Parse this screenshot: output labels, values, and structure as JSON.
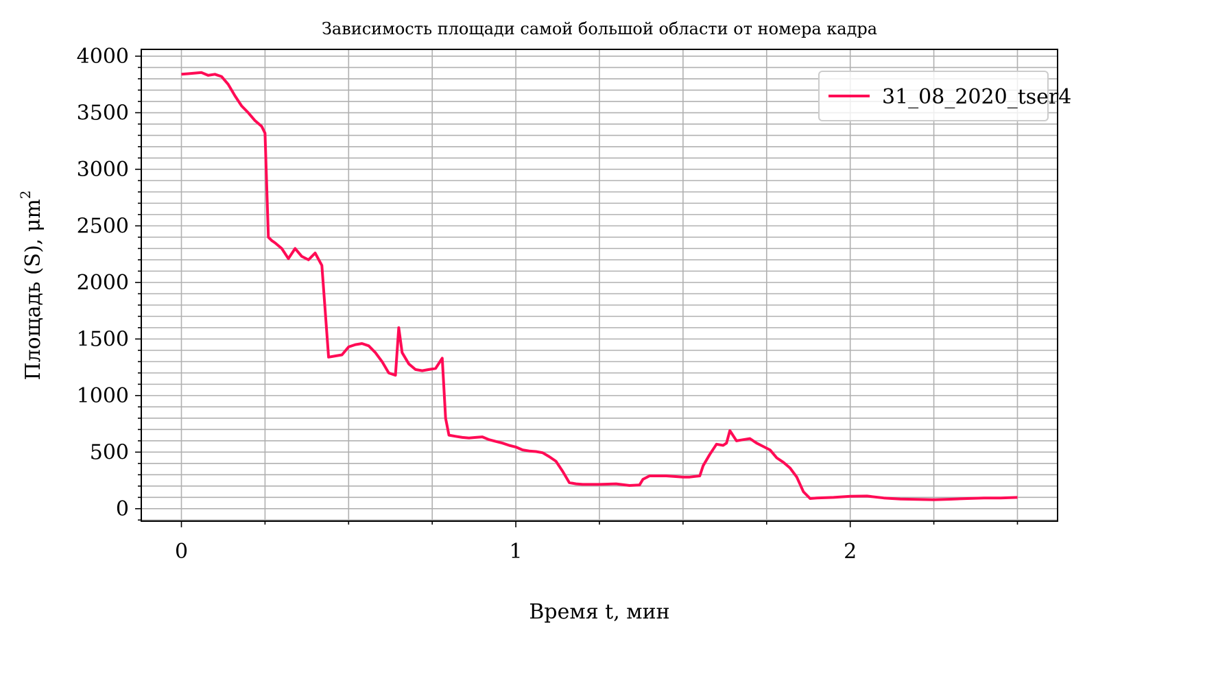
{
  "chart_data": {
    "type": "line",
    "title": "Зависимость площади самой большой области от номера кадра",
    "xlabel": "Время t, мин",
    "ylabel": "Площадь (S), μm",
    "ylabel_superscript": "2",
    "xlim": [
      -0.12,
      2.62
    ],
    "ylim": [
      -110,
      4060
    ],
    "x_ticks": [
      0,
      1,
      2
    ],
    "x_tick_labels": [
      "0",
      "1",
      "2"
    ],
    "x_minor_step": 0.25,
    "y_ticks": [
      0,
      500,
      1000,
      1500,
      2000,
      2500,
      3000,
      3500,
      4000
    ],
    "y_tick_labels": [
      "0",
      "500",
      "1000",
      "1500",
      "2000",
      "2500",
      "3000",
      "3500",
      "4000"
    ],
    "y_minor_step": 100,
    "grid": true,
    "legend_position": "top-right",
    "colors": {
      "series": "#ff0b55",
      "grid": "#b0b0b0"
    },
    "series": [
      {
        "name": "31_08_2020_tser4",
        "x": [
          0,
          0.02,
          0.04,
          0.06,
          0.08,
          0.1,
          0.12,
          0.14,
          0.16,
          0.18,
          0.2,
          0.22,
          0.24,
          0.25,
          0.26,
          0.27,
          0.28,
          0.3,
          0.32,
          0.34,
          0.36,
          0.38,
          0.4,
          0.42,
          0.44,
          0.46,
          0.48,
          0.5,
          0.52,
          0.54,
          0.56,
          0.58,
          0.6,
          0.62,
          0.64,
          0.65,
          0.66,
          0.68,
          0.7,
          0.72,
          0.74,
          0.76,
          0.78,
          0.79,
          0.8,
          0.82,
          0.84,
          0.86,
          0.88,
          0.9,
          0.92,
          0.94,
          0.96,
          0.98,
          1.0,
          1.02,
          1.04,
          1.06,
          1.08,
          1.1,
          1.12,
          1.14,
          1.16,
          1.18,
          1.2,
          1.25,
          1.3,
          1.34,
          1.37,
          1.38,
          1.4,
          1.45,
          1.5,
          1.52,
          1.55,
          1.56,
          1.58,
          1.6,
          1.62,
          1.63,
          1.64,
          1.66,
          1.68,
          1.7,
          1.72,
          1.74,
          1.76,
          1.78,
          1.8,
          1.82,
          1.84,
          1.86,
          1.88,
          1.9,
          1.95,
          2.0,
          2.05,
          2.1,
          2.15,
          2.2,
          2.25,
          2.3,
          2.35,
          2.4,
          2.45,
          2.5
        ],
        "values": [
          3840,
          3845,
          3850,
          3855,
          3830,
          3840,
          3820,
          3750,
          3650,
          3560,
          3500,
          3430,
          3380,
          3320,
          2400,
          2370,
          2350,
          2300,
          2210,
          2300,
          2230,
          2200,
          2260,
          2150,
          1340,
          1350,
          1360,
          1430,
          1450,
          1460,
          1440,
          1380,
          1300,
          1200,
          1180,
          1600,
          1380,
          1280,
          1230,
          1220,
          1230,
          1240,
          1330,
          800,
          650,
          640,
          630,
          625,
          630,
          635,
          610,
          595,
          580,
          560,
          545,
          520,
          510,
          505,
          495,
          460,
          420,
          330,
          230,
          220,
          215,
          215,
          220,
          205,
          210,
          260,
          290,
          290,
          280,
          280,
          290,
          380,
          480,
          570,
          560,
          580,
          690,
          600,
          610,
          620,
          580,
          550,
          520,
          450,
          410,
          360,
          280,
          150,
          90,
          95,
          100,
          110,
          112,
          95,
          85,
          82,
          80,
          84,
          90,
          95,
          95,
          100
        ]
      }
    ]
  }
}
